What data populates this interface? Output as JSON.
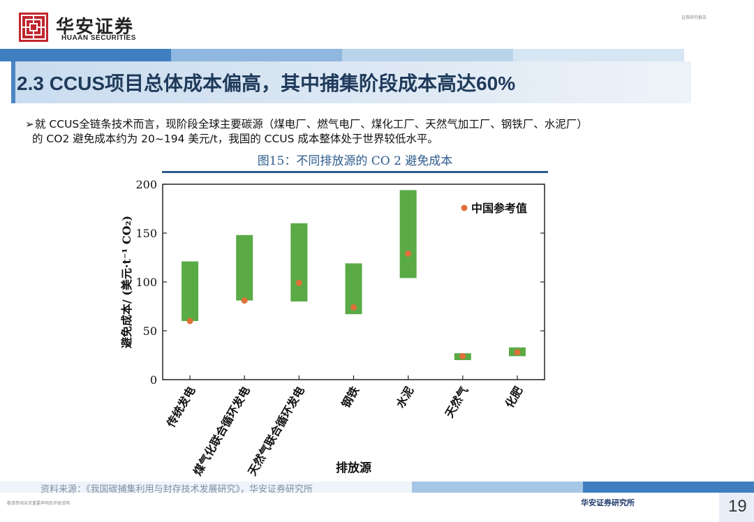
{
  "header": {
    "logo_cn": "华安证券",
    "logo_en": "HUAAN SECURITIES",
    "tag": "证券研究报告"
  },
  "slide": {
    "title": "2.3 CCUS项目总体成本偏高，其中捕集阶段成本高达60%",
    "bullet_line1": "就 CCUS全链条技术而言，现阶段全球主要碳源（煤电厂、燃气电厂、煤化工厂、天然气加工厂、钢铁厂、水泥厂）",
    "bullet_line2": "的 CO2 避免成本约为 20~194 美元/t，我国的 CCUS 成本整体处于世界较低水平。",
    "figure_title": "图15：不同排放源的 CO 2 避免成本"
  },
  "chart_data": {
    "type": "bar",
    "categories": [
      "传统发电",
      "煤气化联合循环发电",
      "天然气联合循环发电",
      "钢铁",
      "水泥",
      "天然气",
      "化肥"
    ],
    "series": [
      {
        "name": "",
        "kind": "range",
        "low": [
          60,
          81,
          80,
          67,
          104,
          20,
          24
        ],
        "high": [
          121,
          148,
          160,
          119,
          194,
          27,
          33
        ]
      },
      {
        "name": "中国参考值",
        "kind": "point",
        "values": [
          60,
          81,
          99,
          74,
          129,
          24,
          28
        ]
      }
    ],
    "xlabel": "排放源",
    "ylabel": "避免成本/ (美元·t⁻¹ CO₂)",
    "ylim": [
      0,
      200
    ],
    "yticks": [
      0,
      50,
      100,
      150,
      200
    ],
    "legend_position": "top-right",
    "colors": {
      "bar": "#5aaa45",
      "point": "#e0703a"
    }
  },
  "footer": {
    "source": "资料来源：《我国碳捕集利用与封存技术发展研究》，华安证券研究所",
    "note": "敬请参阅末页重要声明及评级说明",
    "brand": "华安证券研究所",
    "page": "19"
  }
}
